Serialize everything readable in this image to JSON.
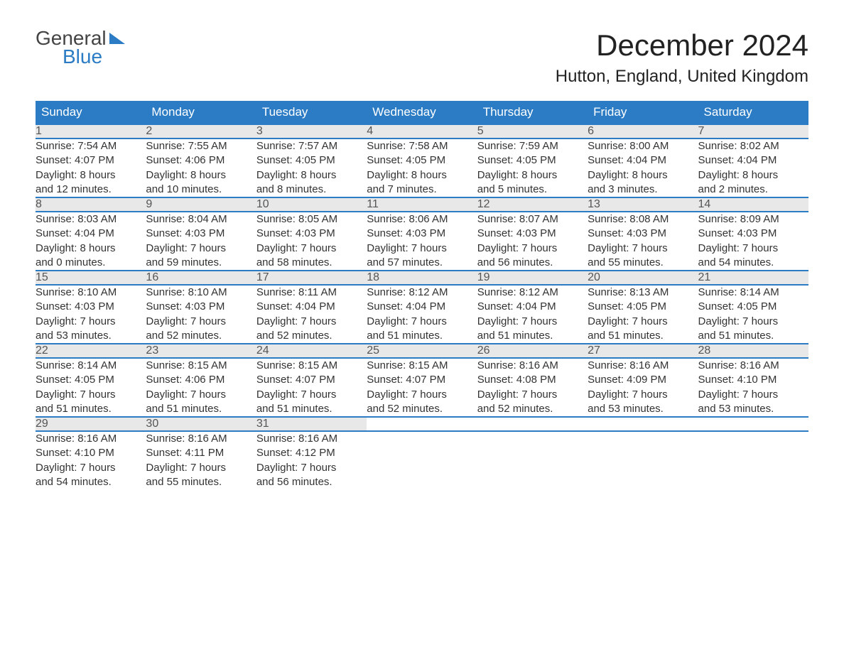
{
  "logo": {
    "word1": "General",
    "word2": "Blue"
  },
  "title": "December 2024",
  "location": "Hutton, England, United Kingdom",
  "colors": {
    "accent": "#2b7cc4",
    "header_bg": "#2b7cc4",
    "daynum_bg": "#e8e8e8",
    "text": "#333333"
  },
  "day_headers": [
    "Sunday",
    "Monday",
    "Tuesday",
    "Wednesday",
    "Thursday",
    "Friday",
    "Saturday"
  ],
  "weeks": [
    [
      {
        "num": "1",
        "sunrise": "Sunrise: 7:54 AM",
        "sunset": "Sunset: 4:07 PM",
        "d1": "Daylight: 8 hours",
        "d2": "and 12 minutes."
      },
      {
        "num": "2",
        "sunrise": "Sunrise: 7:55 AM",
        "sunset": "Sunset: 4:06 PM",
        "d1": "Daylight: 8 hours",
        "d2": "and 10 minutes."
      },
      {
        "num": "3",
        "sunrise": "Sunrise: 7:57 AM",
        "sunset": "Sunset: 4:05 PM",
        "d1": "Daylight: 8 hours",
        "d2": "and 8 minutes."
      },
      {
        "num": "4",
        "sunrise": "Sunrise: 7:58 AM",
        "sunset": "Sunset: 4:05 PM",
        "d1": "Daylight: 8 hours",
        "d2": "and 7 minutes."
      },
      {
        "num": "5",
        "sunrise": "Sunrise: 7:59 AM",
        "sunset": "Sunset: 4:05 PM",
        "d1": "Daylight: 8 hours",
        "d2": "and 5 minutes."
      },
      {
        "num": "6",
        "sunrise": "Sunrise: 8:00 AM",
        "sunset": "Sunset: 4:04 PM",
        "d1": "Daylight: 8 hours",
        "d2": "and 3 minutes."
      },
      {
        "num": "7",
        "sunrise": "Sunrise: 8:02 AM",
        "sunset": "Sunset: 4:04 PM",
        "d1": "Daylight: 8 hours",
        "d2": "and 2 minutes."
      }
    ],
    [
      {
        "num": "8",
        "sunrise": "Sunrise: 8:03 AM",
        "sunset": "Sunset: 4:04 PM",
        "d1": "Daylight: 8 hours",
        "d2": "and 0 minutes."
      },
      {
        "num": "9",
        "sunrise": "Sunrise: 8:04 AM",
        "sunset": "Sunset: 4:03 PM",
        "d1": "Daylight: 7 hours",
        "d2": "and 59 minutes."
      },
      {
        "num": "10",
        "sunrise": "Sunrise: 8:05 AM",
        "sunset": "Sunset: 4:03 PM",
        "d1": "Daylight: 7 hours",
        "d2": "and 58 minutes."
      },
      {
        "num": "11",
        "sunrise": "Sunrise: 8:06 AM",
        "sunset": "Sunset: 4:03 PM",
        "d1": "Daylight: 7 hours",
        "d2": "and 57 minutes."
      },
      {
        "num": "12",
        "sunrise": "Sunrise: 8:07 AM",
        "sunset": "Sunset: 4:03 PM",
        "d1": "Daylight: 7 hours",
        "d2": "and 56 minutes."
      },
      {
        "num": "13",
        "sunrise": "Sunrise: 8:08 AM",
        "sunset": "Sunset: 4:03 PM",
        "d1": "Daylight: 7 hours",
        "d2": "and 55 minutes."
      },
      {
        "num": "14",
        "sunrise": "Sunrise: 8:09 AM",
        "sunset": "Sunset: 4:03 PM",
        "d1": "Daylight: 7 hours",
        "d2": "and 54 minutes."
      }
    ],
    [
      {
        "num": "15",
        "sunrise": "Sunrise: 8:10 AM",
        "sunset": "Sunset: 4:03 PM",
        "d1": "Daylight: 7 hours",
        "d2": "and 53 minutes."
      },
      {
        "num": "16",
        "sunrise": "Sunrise: 8:10 AM",
        "sunset": "Sunset: 4:03 PM",
        "d1": "Daylight: 7 hours",
        "d2": "and 52 minutes."
      },
      {
        "num": "17",
        "sunrise": "Sunrise: 8:11 AM",
        "sunset": "Sunset: 4:04 PM",
        "d1": "Daylight: 7 hours",
        "d2": "and 52 minutes."
      },
      {
        "num": "18",
        "sunrise": "Sunrise: 8:12 AM",
        "sunset": "Sunset: 4:04 PM",
        "d1": "Daylight: 7 hours",
        "d2": "and 51 minutes."
      },
      {
        "num": "19",
        "sunrise": "Sunrise: 8:12 AM",
        "sunset": "Sunset: 4:04 PM",
        "d1": "Daylight: 7 hours",
        "d2": "and 51 minutes."
      },
      {
        "num": "20",
        "sunrise": "Sunrise: 8:13 AM",
        "sunset": "Sunset: 4:05 PM",
        "d1": "Daylight: 7 hours",
        "d2": "and 51 minutes."
      },
      {
        "num": "21",
        "sunrise": "Sunrise: 8:14 AM",
        "sunset": "Sunset: 4:05 PM",
        "d1": "Daylight: 7 hours",
        "d2": "and 51 minutes."
      }
    ],
    [
      {
        "num": "22",
        "sunrise": "Sunrise: 8:14 AM",
        "sunset": "Sunset: 4:05 PM",
        "d1": "Daylight: 7 hours",
        "d2": "and 51 minutes."
      },
      {
        "num": "23",
        "sunrise": "Sunrise: 8:15 AM",
        "sunset": "Sunset: 4:06 PM",
        "d1": "Daylight: 7 hours",
        "d2": "and 51 minutes."
      },
      {
        "num": "24",
        "sunrise": "Sunrise: 8:15 AM",
        "sunset": "Sunset: 4:07 PM",
        "d1": "Daylight: 7 hours",
        "d2": "and 51 minutes."
      },
      {
        "num": "25",
        "sunrise": "Sunrise: 8:15 AM",
        "sunset": "Sunset: 4:07 PM",
        "d1": "Daylight: 7 hours",
        "d2": "and 52 minutes."
      },
      {
        "num": "26",
        "sunrise": "Sunrise: 8:16 AM",
        "sunset": "Sunset: 4:08 PM",
        "d1": "Daylight: 7 hours",
        "d2": "and 52 minutes."
      },
      {
        "num": "27",
        "sunrise": "Sunrise: 8:16 AM",
        "sunset": "Sunset: 4:09 PM",
        "d1": "Daylight: 7 hours",
        "d2": "and 53 minutes."
      },
      {
        "num": "28",
        "sunrise": "Sunrise: 8:16 AM",
        "sunset": "Sunset: 4:10 PM",
        "d1": "Daylight: 7 hours",
        "d2": "and 53 minutes."
      }
    ],
    [
      {
        "num": "29",
        "sunrise": "Sunrise: 8:16 AM",
        "sunset": "Sunset: 4:10 PM",
        "d1": "Daylight: 7 hours",
        "d2": "and 54 minutes."
      },
      {
        "num": "30",
        "sunrise": "Sunrise: 8:16 AM",
        "sunset": "Sunset: 4:11 PM",
        "d1": "Daylight: 7 hours",
        "d2": "and 55 minutes."
      },
      {
        "num": "31",
        "sunrise": "Sunrise: 8:16 AM",
        "sunset": "Sunset: 4:12 PM",
        "d1": "Daylight: 7 hours",
        "d2": "and 56 minutes."
      },
      null,
      null,
      null,
      null
    ]
  ]
}
